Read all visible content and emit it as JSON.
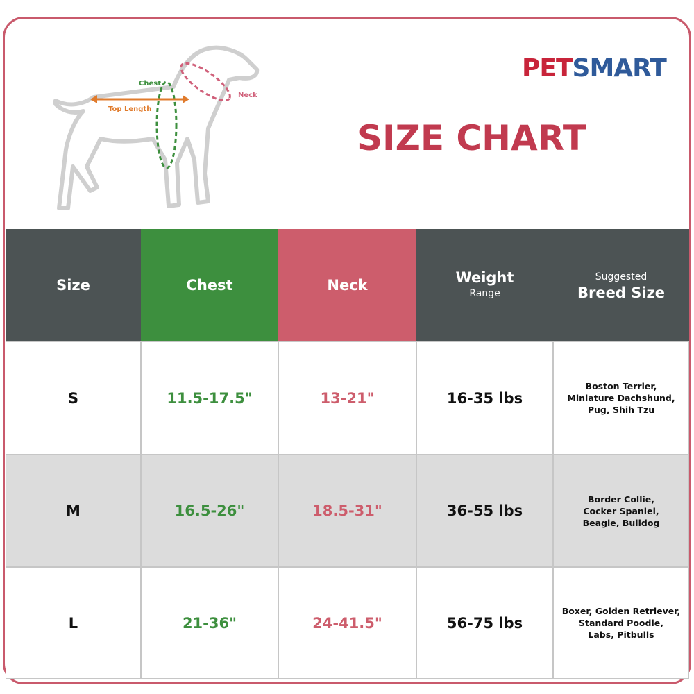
{
  "logo": {
    "parts": [
      "PET",
      "SMART"
    ]
  },
  "title": "SIZE CHART",
  "diagram": {
    "labels": {
      "chest": "Chest",
      "top_length": "Top Length",
      "neck": "Neck"
    }
  },
  "table": {
    "headers": [
      [
        "Size"
      ],
      [
        "Chest"
      ],
      [
        "Neck"
      ],
      [
        "Weight",
        "Range"
      ],
      [
        "Suggested",
        "Breed Size"
      ]
    ],
    "rows": [
      [
        "S",
        "11.5-17.5\"",
        "13-21\"",
        "16-35 lbs",
        [
          "Boston Terrier,",
          "Miniature Dachshund,",
          "Pug, Shih Tzu"
        ]
      ],
      [
        "M",
        "16.5-26\"",
        "18.5-31\"",
        "36-55 lbs",
        [
          "Border Collie,",
          "Cocker Spaniel,",
          "Beagle, Bulldog"
        ]
      ],
      [
        "L",
        "21-36\"",
        "24-41.5\"",
        "56-75 lbs",
        [
          "Boxer, Golden Retriever,",
          "Standard Poodle,",
          "Labs, Pitbulls"
        ]
      ]
    ]
  }
}
